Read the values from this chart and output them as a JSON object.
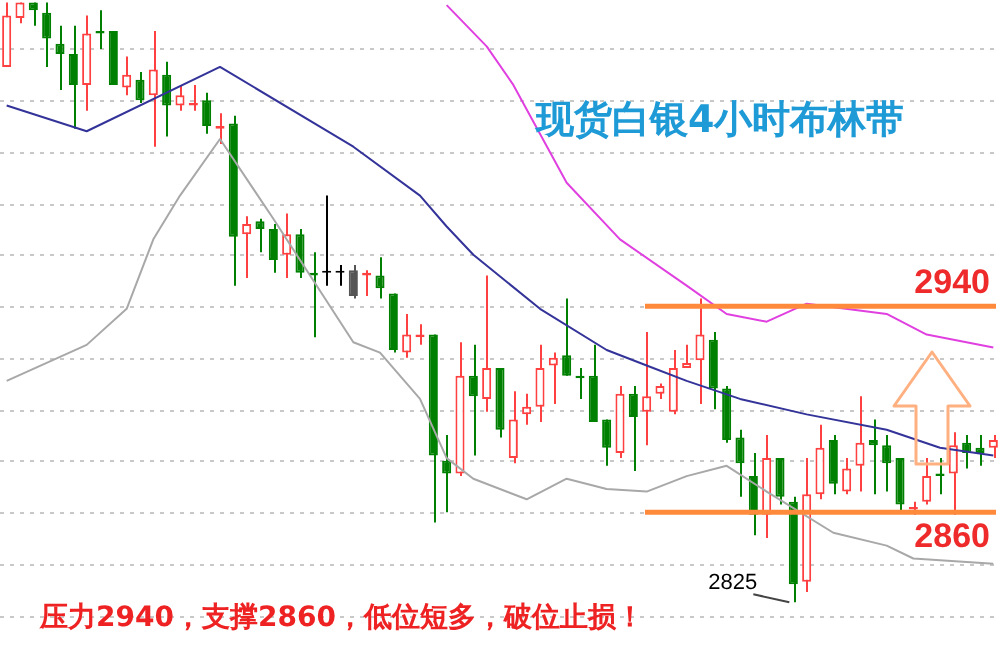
{
  "chart_data": {
    "type": "candlestick",
    "title": "现货白银4小时布林带",
    "categories": [
      null,
      null,
      null,
      null,
      null,
      null,
      null,
      null,
      null,
      null,
      null,
      null,
      null,
      null,
      null,
      null,
      null,
      null,
      null,
      null,
      null,
      null,
      null,
      null,
      null,
      null,
      null,
      null,
      null,
      null,
      null,
      null,
      null,
      null,
      null,
      null,
      null,
      null,
      null,
      null,
      null,
      null,
      null,
      null,
      null,
      null,
      null,
      null,
      null,
      null,
      null,
      null,
      null,
      null,
      null,
      null,
      null,
      null,
      null,
      null,
      null,
      null,
      null,
      null,
      null,
      null,
      null,
      null,
      null,
      null,
      null,
      null,
      null,
      null,
      null
    ],
    "series": [
      {
        "ohlc": [
          [
            3033,
            3058,
            3033,
            3053
          ],
          [
            3052,
            3058,
            3050,
            3058
          ],
          [
            3058,
            3058,
            3049,
            3055
          ],
          [
            3054,
            3058,
            3033,
            3044
          ],
          [
            3042,
            3049,
            3024,
            3038
          ],
          [
            3038,
            3049,
            3009,
            3026
          ],
          [
            3026,
            3053,
            3016,
            3046
          ],
          [
            3047,
            3055,
            3040,
            3046
          ],
          [
            3047,
            3047,
            3026,
            3026
          ],
          [
            3025,
            3037,
            3022,
            3030
          ],
          [
            3028,
            3031,
            3019,
            3020
          ],
          [
            3022,
            3047,
            3002,
            3032
          ],
          [
            3030,
            3035,
            3006,
            3018
          ],
          [
            3018,
            3026,
            3016,
            3022
          ],
          [
            3018,
            3026,
            3016,
            3019
          ],
          [
            3020,
            3023,
            3007,
            3010
          ],
          [
            3009,
            3015,
            3003,
            3010
          ],
          [
            3011,
            3014,
            2948,
            2967
          ],
          [
            2968,
            2975,
            2951,
            2972
          ],
          [
            2973,
            2974,
            2961,
            2970
          ],
          [
            2970,
            2972,
            2953,
            2958
          ],
          [
            2960,
            2976,
            2951,
            2968
          ],
          [
            2968,
            2970,
            2951,
            2953
          ],
          [
            2953,
            2961,
            2928,
            2952
          ],
          [
            2953,
            2983,
            2948,
            2953
          ],
          [
            2953,
            2956,
            2948,
            2953
          ],
          [
            2954,
            2956,
            2943,
            2944
          ],
          [
            2952,
            2954,
            2944,
            2953
          ],
          [
            2952,
            2959,
            2943,
            2947
          ],
          [
            2945,
            2945,
            2922,
            2923
          ],
          [
            2922,
            2937,
            2920,
            2929
          ],
          [
            2928,
            2933,
            2925,
            2929
          ],
          [
            2929,
            2929,
            2856,
            2882
          ],
          [
            2880,
            2890,
            2860,
            2875
          ],
          [
            2875,
            2926,
            2874,
            2913
          ],
          [
            2913,
            2925,
            2882,
            2905
          ],
          [
            2904,
            2952,
            2899,
            2916
          ],
          [
            2916,
            2916,
            2889,
            2892
          ],
          [
            2881,
            2907,
            2879,
            2896
          ],
          [
            2898,
            2906,
            2894,
            2901
          ],
          [
            2901,
            2925,
            2895,
            2916
          ],
          [
            2917,
            2922,
            2902,
            2920
          ],
          [
            2921,
            2943,
            2913,
            2913
          ],
          [
            2913,
            2916,
            2904,
            2912
          ],
          [
            2913,
            2925,
            2895,
            2895
          ],
          [
            2896,
            2896,
            2878,
            2885
          ],
          [
            2883,
            2909,
            2881,
            2906
          ],
          [
            2906,
            2909,
            2876,
            2897
          ],
          [
            2899,
            2930,
            2886,
            2905
          ],
          [
            2906,
            2910,
            2904,
            2909
          ],
          [
            2899,
            2923,
            2898,
            2916
          ],
          [
            2916,
            2925,
            2916,
            2918
          ],
          [
            2919,
            2943,
            2902,
            2929
          ],
          [
            2927,
            2930,
            2900,
            2908
          ],
          [
            2908,
            2909,
            2887,
            2888
          ],
          [
            2889,
            2892,
            2866,
            2879
          ],
          [
            2874,
            2883,
            2851,
            2859
          ],
          [
            2859,
            2890,
            2850,
            2881
          ],
          [
            2881,
            2881,
            2863,
            2866
          ],
          [
            2864,
            2866,
            2825,
            2832
          ],
          [
            2833,
            2881,
            2829,
            2867
          ],
          [
            2867,
            2894,
            2865,
            2885
          ],
          [
            2888,
            2890,
            2867,
            2871
          ],
          [
            2868,
            2881,
            2867,
            2877
          ],
          [
            2878,
            2905,
            2868,
            2887
          ],
          [
            2888,
            2896,
            2867,
            2886
          ],
          [
            2886,
            2890,
            2868,
            2879
          ],
          [
            2881,
            2881,
            2860,
            2863
          ],
          [
            2861,
            2864,
            2859,
            2862
          ],
          [
            2864,
            2881,
            2863,
            2874
          ],
          [
            2875,
            2881,
            2867,
            2874
          ],
          [
            2875,
            2891,
            2859,
            2886
          ],
          [
            2887,
            2890,
            2877,
            2883
          ],
          [
            2885,
            2890,
            2878,
            2883
          ],
          [
            2885,
            2890,
            2881,
            2888
          ]
        ],
        "colors": [
          "#ff4040",
          "#ff4040",
          "#008000",
          "#008000",
          "#008000",
          "#008000",
          "#ff4040",
          "#008000",
          "#008000",
          "#ff4040",
          "#008000",
          "#ff4040",
          "#008000",
          "#ff4040",
          "#ff4040",
          "#008000",
          "#ff4040",
          "#008000",
          "#ff4040",
          "#008000",
          "#008000",
          "#ff4040",
          "#008000",
          "#008000",
          "#000000",
          "#000000",
          "#555555",
          "#ff4040",
          "#008000",
          "#008000",
          "#ff4040",
          "#ff4040",
          "#008000",
          "#008000",
          "#ff4040",
          "#008000",
          "#ff4040",
          "#008000",
          "#ff4040",
          "#ff4040",
          "#ff4040",
          "#ff4040",
          "#008000",
          "#008000",
          "#008000",
          "#008000",
          "#ff4040",
          "#008000",
          "#ff4040",
          "#ff4040",
          "#ff4040",
          "#ff4040",
          "#ff4040",
          "#008000",
          "#008000",
          "#008000",
          "#008000",
          "#ff4040",
          "#008000",
          "#008000",
          "#ff4040",
          "#ff4040",
          "#008000",
          "#ff4040",
          "#ff4040",
          "#008000",
          "#008000",
          "#008000",
          "#ff4040",
          "#ff4040",
          "#008000",
          "#ff4040",
          "#008000",
          "#008000",
          "#ff4040"
        ]
      },
      {
        "type": "line",
        "color": "#e040e0",
        "values": [
          null,
          null,
          null,
          null,
          null,
          null,
          null,
          null,
          null,
          null,
          null,
          null,
          null,
          null,
          null,
          null,
          null,
          null,
          null,
          null,
          null,
          null,
          null,
          null,
          null,
          null,
          null,
          null,
          null,
          null,
          null,
          null,
          null,
          3057,
          null,
          null,
          3041,
          null,
          3026,
          null,
          null,
          null,
          2988,
          null,
          null,
          null,
          2966,
          null,
          null,
          null,
          null,
          2948,
          null,
          null,
          2937,
          null,
          null,
          2934,
          null,
          null,
          2941,
          null,
          null,
          null,
          null,
          null,
          2937,
          null,
          null,
          2929,
          null,
          null,
          null,
          null,
          2924
        ]
      },
      {
        "type": "line",
        "color": "#333399",
        "values": [
          3018,
          null,
          null,
          null,
          null,
          null,
          3008,
          null,
          null,
          null,
          null,
          null,
          null,
          null,
          null,
          null,
          3033,
          null,
          null,
          null,
          null,
          null,
          null,
          null,
          null,
          null,
          3002,
          null,
          null,
          null,
          null,
          2983,
          null,
          2971,
          null,
          2960,
          null,
          null,
          null,
          null,
          2939,
          null,
          null,
          null,
          null,
          2923,
          null,
          null,
          2917,
          null,
          null,
          2911,
          null,
          null,
          null,
          2904,
          null,
          null,
          null,
          null,
          2898,
          null,
          null,
          null,
          null,
          null,
          2892,
          null,
          null,
          null,
          2885,
          null,
          null,
          null,
          2882
        ]
      },
      {
        "type": "line",
        "color": "#a8a8a8",
        "values": [
          2911,
          null,
          null,
          null,
          null,
          null,
          2925,
          null,
          null,
          2939,
          null,
          2966,
          null,
          2983,
          null,
          null,
          3005,
          null,
          null,
          null,
          2974,
          null,
          null,
          2950,
          null,
          null,
          2926,
          null,
          2922,
          null,
          null,
          2904,
          null,
          2881,
          null,
          2873,
          null,
          null,
          null,
          2865,
          null,
          null,
          2873,
          null,
          null,
          2869,
          null,
          null,
          2868,
          null,
          null,
          2874,
          null,
          null,
          2878,
          null,
          null,
          2868,
          null,
          null,
          null,
          null,
          2852,
          null,
          null,
          null,
          2847,
          null,
          2842,
          null,
          null,
          null,
          null,
          null,
          2840
        ]
      }
    ],
    "ylim": [
      2801,
      3059
    ],
    "yticks": [
      {
        "value": 2820,
        "label": null
      },
      {
        "value": 2840,
        "label": null
      },
      {
        "value": 2860,
        "label": null
      },
      {
        "value": 2880,
        "label": null
      },
      {
        "value": 2900,
        "label": null
      },
      {
        "value": 2920,
        "label": null
      },
      {
        "value": 2940,
        "label": null
      },
      {
        "value": 2960,
        "label": null
      },
      {
        "value": 2980,
        "label": null
      },
      {
        "value": 3000,
        "label": null
      },
      {
        "value": 3020,
        "label": null
      },
      {
        "value": 3040,
        "label": null
      }
    ],
    "grid": "y",
    "tick_labels": false,
    "ref_lines": [
      {
        "axis": "y",
        "value": 2940,
        "label": "2940",
        "color": "#ff8a3c"
      },
      {
        "axis": "y",
        "value": 2860,
        "label": "2860",
        "color": "#ff8a3c"
      }
    ],
    "annotations": [
      "压力2940，支撑2860，低位短多，破位止损！",
      "2825"
    ]
  }
}
